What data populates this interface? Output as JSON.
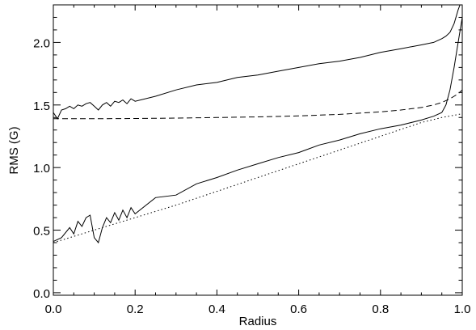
{
  "chart_data": {
    "type": "line",
    "title": "",
    "xlabel": "Radius",
    "ylabel": "RMS (G)",
    "xlim": [
      0.0,
      1.0
    ],
    "ylim": [
      -0.02,
      2.3
    ],
    "grid": false,
    "legend": "none",
    "x_ticks": [
      0.0,
      0.2,
      0.4,
      0.6,
      0.8,
      1.0
    ],
    "x_tick_labels": [
      "0.0",
      "0.2",
      "0.4",
      "0.6",
      "0.8",
      "1.0"
    ],
    "y_ticks": [
      0.0,
      0.5,
      1.0,
      1.5,
      2.0
    ],
    "y_tick_labels": [
      "0.0",
      "0.5",
      "1.0",
      "1.5",
      "2.0"
    ],
    "series": [
      {
        "style": "solid",
        "x": [
          0.0,
          0.01,
          0.02,
          0.03,
          0.04,
          0.05,
          0.06,
          0.07,
          0.08,
          0.09,
          0.1,
          0.11,
          0.12,
          0.13,
          0.14,
          0.15,
          0.16,
          0.17,
          0.18,
          0.19,
          0.2,
          0.25,
          0.3,
          0.35,
          0.4,
          0.45,
          0.5,
          0.55,
          0.6,
          0.65,
          0.7,
          0.75,
          0.8,
          0.85,
          0.9,
          0.93,
          0.95,
          0.96,
          0.97,
          0.98,
          0.99,
          1.0
        ],
        "y": [
          1.44,
          1.39,
          1.46,
          1.47,
          1.49,
          1.47,
          1.5,
          1.49,
          1.51,
          1.52,
          1.49,
          1.46,
          1.5,
          1.52,
          1.49,
          1.53,
          1.52,
          1.54,
          1.51,
          1.55,
          1.53,
          1.57,
          1.62,
          1.66,
          1.68,
          1.72,
          1.74,
          1.77,
          1.8,
          1.83,
          1.85,
          1.88,
          1.92,
          1.95,
          1.98,
          2.0,
          2.03,
          2.05,
          2.08,
          2.15,
          2.26,
          2.35
        ]
      },
      {
        "style": "dashed",
        "x": [
          0.0,
          0.1,
          0.2,
          0.3,
          0.4,
          0.5,
          0.6,
          0.7,
          0.8,
          0.85,
          0.9,
          0.93,
          0.95,
          0.97,
          0.98,
          0.99,
          1.0
        ],
        "y": [
          1.39,
          1.39,
          1.392,
          1.395,
          1.4,
          1.405,
          1.413,
          1.425,
          1.445,
          1.46,
          1.48,
          1.5,
          1.52,
          1.55,
          1.57,
          1.59,
          1.62
        ]
      },
      {
        "style": "solid",
        "x": [
          0.0,
          0.02,
          0.04,
          0.05,
          0.06,
          0.07,
          0.08,
          0.09,
          0.1,
          0.11,
          0.12,
          0.13,
          0.14,
          0.15,
          0.16,
          0.17,
          0.18,
          0.19,
          0.2,
          0.25,
          0.3,
          0.35,
          0.4,
          0.45,
          0.5,
          0.55,
          0.6,
          0.65,
          0.7,
          0.75,
          0.8,
          0.85,
          0.9,
          0.93,
          0.95,
          0.96,
          0.97,
          0.98,
          0.99,
          1.0
        ],
        "y": [
          0.41,
          0.44,
          0.52,
          0.47,
          0.57,
          0.53,
          0.6,
          0.62,
          0.44,
          0.4,
          0.52,
          0.6,
          0.56,
          0.64,
          0.58,
          0.66,
          0.6,
          0.68,
          0.63,
          0.76,
          0.78,
          0.87,
          0.92,
          0.98,
          1.03,
          1.08,
          1.12,
          1.18,
          1.22,
          1.27,
          1.31,
          1.34,
          1.38,
          1.41,
          1.44,
          1.5,
          1.62,
          1.8,
          2.0,
          2.2
        ]
      },
      {
        "style": "dotted",
        "x": [
          0.0,
          0.1,
          0.2,
          0.3,
          0.4,
          0.5,
          0.6,
          0.7,
          0.8,
          0.9,
          0.95,
          1.0
        ],
        "y": [
          0.4,
          0.5,
          0.6,
          0.7,
          0.81,
          0.92,
          1.03,
          1.14,
          1.25,
          1.36,
          1.4,
          1.43
        ]
      }
    ]
  }
}
